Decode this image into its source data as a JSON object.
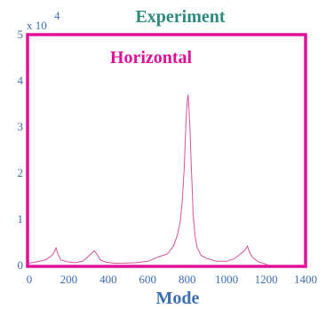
{
  "chart_data": {
    "type": "line",
    "title": "Experiment",
    "xlabel": "Mode",
    "ylabel": "",
    "annotation": "Horizontal",
    "y_scale_label": "x 10",
    "y_scale_exponent": "4",
    "xlim": [
      0,
      1400
    ],
    "ylim": [
      0,
      50000
    ],
    "xticks": [
      "0",
      "200",
      "400",
      "600",
      "800",
      "1000",
      "1200",
      "1400"
    ],
    "yticks": [
      "0",
      "1",
      "2",
      "3",
      "4",
      "5"
    ],
    "grid": false,
    "colors": {
      "frame": "#e0109a",
      "series": "#d6509e",
      "title": "#2e8a80",
      "axis": "#3a6fb0"
    },
    "series": [
      {
        "values_x": [
          0,
          40,
          80,
          110,
          125,
          135,
          145,
          160,
          190,
          230,
          270,
          300,
          320,
          330,
          345,
          360,
          390,
          430,
          480,
          540,
          600,
          650,
          700,
          730,
          750,
          765,
          775,
          785,
          790,
          795,
          800,
          805,
          810,
          815,
          820,
          825,
          830,
          840,
          850,
          870,
          900,
          950,
          1000,
          1040,
          1060,
          1080,
          1095,
          1105,
          1115,
          1130,
          1160,
          1200,
          1210
        ],
        "values_y": [
          500,
          800,
          1200,
          2000,
          2800,
          3800,
          2500,
          1200,
          800,
          600,
          900,
          2000,
          2800,
          3200,
          2300,
          1200,
          700,
          500,
          500,
          600,
          900,
          1800,
          2500,
          4200,
          6500,
          9500,
          14000,
          21000,
          27000,
          32000,
          35500,
          37000,
          33500,
          29000,
          22000,
          17000,
          11000,
          6500,
          4000,
          2200,
          1500,
          900,
          900,
          1500,
          2200,
          2800,
          3500,
          4200,
          3000,
          1800,
          800,
          300,
          0
        ]
      }
    ]
  }
}
